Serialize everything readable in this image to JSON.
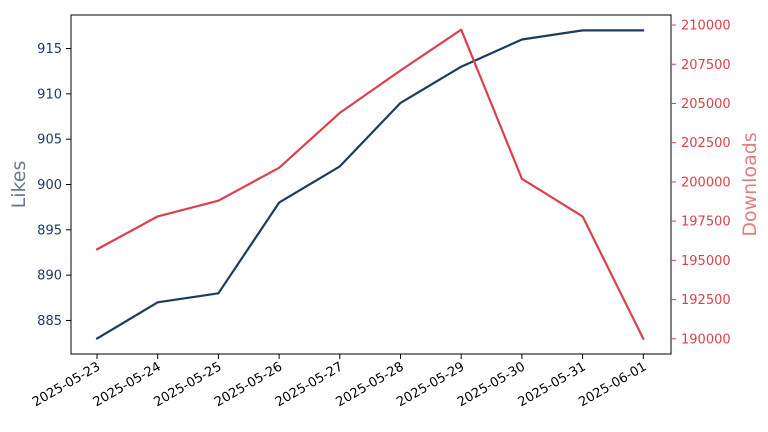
{
  "chart_data": {
    "type": "line",
    "x": [
      "2025-05-23",
      "2025-05-24",
      "2025-05-25",
      "2025-05-26",
      "2025-05-27",
      "2025-05-28",
      "2025-05-29",
      "2025-05-30",
      "2025-05-31",
      "2025-06-01"
    ],
    "series": [
      {
        "axis": "left",
        "color": "#1f3a5f",
        "values": [
          883,
          887,
          888,
          898,
          902,
          909,
          913,
          916,
          917,
          917
        ]
      },
      {
        "axis": "right",
        "color": "#d9414e",
        "values": [
          195700,
          197800,
          198800,
          200900,
          204400,
          207100,
          209700,
          200200,
          197800,
          190000
        ]
      }
    ],
    "ylabel": "Likes",
    "ylabel_right": "Downloads",
    "ylim": [
      881.3,
      918.7
    ],
    "ylim_right": [
      189030,
      210640
    ],
    "yticks": [
      885,
      890,
      895,
      900,
      905,
      910,
      915
    ],
    "yticks_right": [
      190000,
      192500,
      195000,
      197500,
      200000,
      202500,
      205000,
      207500,
      210000
    ],
    "grid": false,
    "left_axis_color": "#1f3a5f",
    "right_axis_color": "#d9414e"
  }
}
